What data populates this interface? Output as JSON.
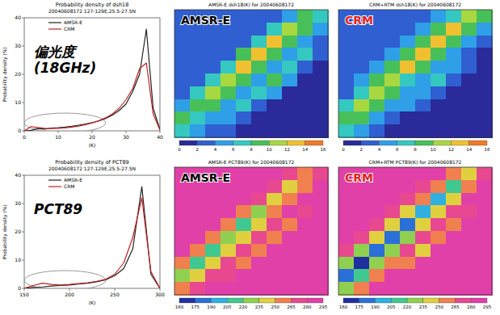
{
  "chart_data": [
    {
      "type": "line",
      "title": "Probability density of dsh18",
      "subtitle": "20040608172 127-129E,25.5-27.5N",
      "x_label": "(K)",
      "y_label": "Probability density (%)",
      "annotations": [
        "偏光度",
        "(18GHz)"
      ],
      "x": [
        0,
        2,
        4,
        6,
        8,
        10,
        12,
        14,
        16,
        18,
        20,
        22,
        24,
        26,
        28,
        30,
        32,
        34,
        36,
        38,
        40
      ],
      "series": [
        {
          "name": "AMSR-E",
          "color": "#222222",
          "values": [
            0,
            0.2,
            0.8,
            0.6,
            1.0,
            1.1,
            1.3,
            1.6,
            2.0,
            2.4,
            2.9,
            3.5,
            4.4,
            5.6,
            7.2,
            9.5,
            14,
            20,
            36,
            8,
            0.5
          ]
        },
        {
          "name": "CRM",
          "color": "#c02020",
          "values": [
            0,
            1.5,
            1.2,
            0.9,
            0.8,
            0.9,
            1.0,
            1.3,
            1.7,
            2.2,
            2.8,
            3.6,
            4.6,
            6.0,
            8.0,
            11,
            15,
            22,
            24,
            6,
            0.3
          ]
        }
      ],
      "xlim": [
        0,
        40
      ],
      "ylim": [
        0,
        40
      ],
      "xticks": [
        0,
        10,
        20,
        30,
        40
      ],
      "yticks": [
        0,
        10,
        20,
        30,
        40
      ],
      "legend": "top-left"
    },
    {
      "type": "line",
      "title": "Probability density of PCT89",
      "subtitle": "20040608172 127-129E,25.5-27.5N",
      "x_label": "(K)",
      "y_label": "Probability density (%)",
      "annotations": [
        "PCT89"
      ],
      "x": [
        150,
        160,
        170,
        180,
        190,
        200,
        210,
        220,
        230,
        240,
        250,
        260,
        270,
        280,
        290,
        300
      ],
      "series": [
        {
          "name": "AMSR-E",
          "color": "#222222",
          "values": [
            0,
            0.3,
            0.5,
            0.8,
            1.0,
            1.2,
            1.5,
            1.8,
            2.3,
            3.0,
            4.5,
            7,
            14,
            36,
            5,
            0
          ]
        },
        {
          "name": "CRM",
          "color": "#c02020",
          "values": [
            0,
            1.0,
            1.8,
            1.4,
            1.2,
            1.4,
            1.7,
            2.0,
            2.5,
            3.2,
            5,
            9,
            18,
            32,
            6,
            0
          ]
        }
      ],
      "xlim": [
        150,
        300
      ],
      "ylim": [
        0,
        40
      ],
      "xticks": [
        150,
        200,
        250,
        300
      ],
      "yticks": [
        0,
        10,
        20,
        30,
        40
      ],
      "legend": "top-left"
    },
    {
      "type": "heatmap",
      "title": "AMSR-E dsh18(K) for 20040608172",
      "label": "AMSR-E",
      "color": "#000000",
      "tick_labels": false,
      "cells": [
        [
          3,
          3,
          3,
          3,
          3,
          3,
          3,
          5,
          9,
          7
        ],
        [
          3,
          3,
          3,
          3,
          3,
          3,
          6,
          11,
          9,
          4
        ],
        [
          3,
          3,
          3,
          3,
          3,
          7,
          12,
          8,
          5,
          3
        ],
        [
          3,
          3,
          3,
          3,
          8,
          13,
          9,
          5,
          6,
          2
        ],
        [
          3,
          3,
          3,
          7,
          12,
          9,
          5,
          7,
          3,
          1
        ],
        [
          3,
          3,
          7,
          11,
          8,
          5,
          8,
          4,
          1,
          1
        ],
        [
          3,
          6,
          10,
          9,
          5,
          7,
          4,
          1,
          1,
          1
        ],
        [
          5,
          9,
          8,
          5,
          6,
          3,
          1,
          1,
          1,
          1
        ],
        [
          8,
          7,
          5,
          5,
          2,
          1,
          1,
          1,
          1,
          1
        ],
        [
          6,
          4,
          3,
          2,
          1,
          1,
          1,
          1,
          1,
          1
        ]
      ],
      "colorbar": {
        "levels": [
          0,
          2,
          4,
          6,
          8,
          10,
          12,
          14,
          16
        ],
        "colors": [
          "#2a2a9a",
          "#2f5fd0",
          "#2f9fe8",
          "#35c8c0",
          "#48c05a",
          "#a8d840",
          "#f0c030",
          "#f07a28"
        ]
      }
    },
    {
      "type": "heatmap",
      "title": "CRM+RTM dsh18(K) for 20040608172",
      "label": "CRM",
      "color": "#e02020",
      "tick_labels": false,
      "cells": [
        [
          3,
          3,
          3,
          3,
          3,
          3,
          4,
          7,
          10,
          8
        ],
        [
          3,
          3,
          3,
          3,
          3,
          4,
          8,
          12,
          9,
          4
        ],
        [
          3,
          3,
          3,
          3,
          4,
          9,
          13,
          9,
          4,
          2
        ],
        [
          3,
          3,
          3,
          4,
          9,
          12,
          8,
          4,
          3,
          1
        ],
        [
          3,
          3,
          4,
          9,
          12,
          8,
          4,
          5,
          2,
          1
        ],
        [
          3,
          4,
          8,
          11,
          7,
          4,
          6,
          2,
          1,
          1
        ],
        [
          3,
          7,
          11,
          8,
          4,
          5,
          2,
          1,
          1,
          1
        ],
        [
          6,
          10,
          8,
          4,
          4,
          2,
          1,
          1,
          1,
          1
        ],
        [
          9,
          8,
          4,
          3,
          1,
          1,
          1,
          1,
          1,
          1
        ],
        [
          7,
          4,
          2,
          1,
          1,
          1,
          1,
          1,
          1,
          1
        ]
      ],
      "colorbar": {
        "levels": [
          0,
          2,
          4,
          6,
          8,
          10,
          12,
          14,
          16
        ],
        "colors": [
          "#2a2a9a",
          "#2f5fd0",
          "#2f9fe8",
          "#35c8c0",
          "#48c05a",
          "#a8d840",
          "#f0c030",
          "#f07a28"
        ]
      }
    },
    {
      "type": "heatmap",
      "title": "AMSR-E PCT89(K) for 20040608172",
      "label": "AMSR-E",
      "color": "#000000",
      "tick_labels": false,
      "cells": [
        [
          285,
          285,
          285,
          285,
          285,
          285,
          285,
          270,
          255,
          270
        ],
        [
          285,
          285,
          285,
          285,
          285,
          285,
          268,
          240,
          262,
          285
        ],
        [
          285,
          285,
          285,
          285,
          285,
          265,
          235,
          255,
          285,
          285
        ],
        [
          285,
          285,
          285,
          285,
          262,
          225,
          250,
          280,
          270,
          285
        ],
        [
          285,
          285,
          285,
          258,
          215,
          248,
          278,
          262,
          285,
          285
        ],
        [
          285,
          285,
          255,
          220,
          245,
          275,
          258,
          285,
          285,
          285
        ],
        [
          285,
          252,
          210,
          242,
          272,
          255,
          285,
          285,
          285,
          285
        ],
        [
          260,
          215,
          240,
          270,
          260,
          285,
          285,
          285,
          285,
          285
        ],
        [
          230,
          245,
          268,
          275,
          285,
          285,
          285,
          285,
          285,
          285
        ],
        [
          250,
          270,
          285,
          285,
          285,
          285,
          285,
          285,
          285,
          285
        ]
      ],
      "colorbar": {
        "levels": [
          160,
          175,
          190,
          205,
          220,
          235,
          250,
          265,
          280,
          295
        ],
        "colors": [
          "#2030a0",
          "#2a70d8",
          "#30b0e0",
          "#40c890",
          "#90d050",
          "#e0d040",
          "#f08050",
          "#e84890",
          "#e040a8"
        ]
      }
    },
    {
      "type": "heatmap",
      "title": "CRM+RTM PCT89(K) for 20040608172",
      "label": "CRM",
      "color": "#e02020",
      "tick_labels": false,
      "cells": [
        [
          285,
          285,
          285,
          285,
          285,
          285,
          280,
          262,
          240,
          265
        ],
        [
          285,
          285,
          285,
          285,
          285,
          278,
          255,
          215,
          250,
          282
        ],
        [
          285,
          285,
          285,
          285,
          275,
          250,
          200,
          245,
          280,
          285
        ],
        [
          285,
          285,
          285,
          272,
          245,
          190,
          240,
          278,
          265,
          285
        ],
        [
          285,
          285,
          270,
          240,
          185,
          235,
          275,
          255,
          285,
          285
        ],
        [
          285,
          268,
          235,
          180,
          230,
          272,
          250,
          285,
          285,
          285
        ],
        [
          265,
          230,
          175,
          225,
          268,
          248,
          285,
          285,
          285,
          285
        ],
        [
          225,
          170,
          220,
          262,
          255,
          285,
          285,
          285,
          285,
          285
        ],
        [
          180,
          215,
          258,
          280,
          285,
          285,
          285,
          285,
          285,
          285
        ],
        [
          230,
          262,
          285,
          285,
          285,
          285,
          285,
          285,
          285,
          285
        ]
      ],
      "colorbar": {
        "levels": [
          160,
          175,
          190,
          205,
          220,
          235,
          250,
          265,
          280,
          295
        ],
        "colors": [
          "#2030a0",
          "#2a70d8",
          "#30b0e0",
          "#40c890",
          "#90d050",
          "#e0d040",
          "#f08050",
          "#e84890",
          "#e040a8"
        ]
      }
    }
  ]
}
